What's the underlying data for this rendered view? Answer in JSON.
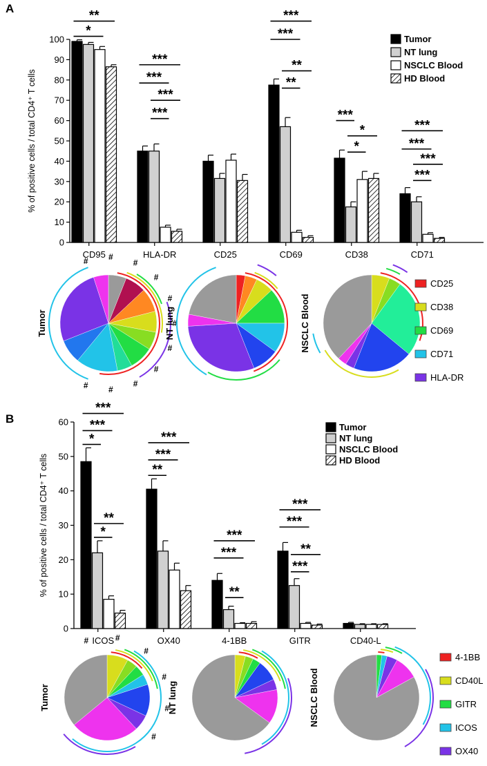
{
  "panels": {
    "a": {
      "label": "A"
    },
    "b": {
      "label": "B"
    }
  },
  "significance_marks": {
    "one": "*",
    "two": "**",
    "three": "***"
  },
  "hash_mark": "#",
  "colors": {
    "tumor": "#000000",
    "nt_lung": "#d0d0d0",
    "nsclc_blood": "#ffffff",
    "hd_blood": "hatched",
    "CD25": "#ee2222",
    "CD38": "#d8dd1d",
    "CD69": "#22dd44",
    "CD71": "#22c3e8",
    "HLA-DR": "#7a33e6",
    "4-1BB": "#ee2222",
    "CD40L": "#d8dd1d",
    "GITR": "#22dd44",
    "ICOS": "#22c3e8",
    "OX40": "#7a33e6",
    "gray": "#9a9a9a",
    "magenta": "#ee33ee",
    "blue": "#2244ee",
    "orange": "#ff8822"
  },
  "chart_data": [
    {
      "type": "bar",
      "panel": "A",
      "ylabel": "% of positive cells / total CD4⁺ T cells",
      "ylim": [
        0,
        100
      ],
      "yticks": [
        0,
        10,
        20,
        30,
        40,
        50,
        60,
        70,
        80,
        90,
        100
      ],
      "categories": [
        "CD95",
        "HLA-DR",
        "CD25",
        "CD69",
        "CD38",
        "CD71"
      ],
      "legend": [
        "Tumor",
        "NT lung",
        "NSCLC Blood",
        "HD Blood"
      ],
      "series": [
        {
          "name": "Tumor",
          "values": [
            99,
            45,
            40,
            77.5,
            41.5,
            24
          ],
          "errors": [
            0.8,
            2.5,
            3,
            3,
            4,
            3
          ]
        },
        {
          "name": "NT lung",
          "values": [
            97.5,
            45,
            31.5,
            57,
            17.5,
            20
          ],
          "errors": [
            1,
            3.5,
            2.5,
            4.5,
            2.5,
            2.5
          ]
        },
        {
          "name": "NSCLC Blood",
          "values": [
            95,
            7.5,
            40.5,
            5,
            31,
            4
          ],
          "errors": [
            1.5,
            1,
            3,
            1,
            4,
            0.8
          ]
        },
        {
          "name": "HD Blood",
          "values": [
            86.5,
            5.5,
            30.5,
            2.5,
            31.5,
            2
          ],
          "errors": [
            1,
            1,
            3,
            0.8,
            2.5,
            0.5
          ]
        }
      ],
      "significance": [
        {
          "cat": 0,
          "from": 0,
          "to": 3,
          "label": "**",
          "y": 109
        },
        {
          "cat": 0,
          "from": 0,
          "to": 2,
          "label": "*",
          "y": 101.5
        },
        {
          "cat": 1,
          "from": 0,
          "to": 3,
          "label": "***",
          "y": 87.5
        },
        {
          "cat": 1,
          "from": 0,
          "to": 2,
          "label": "***",
          "y": 78.5
        },
        {
          "cat": 1,
          "from": 1,
          "to": 3,
          "label": "***",
          "y": 70
        },
        {
          "cat": 1,
          "from": 1,
          "to": 2,
          "label": "***",
          "y": 61
        },
        {
          "cat": 3,
          "from": 0,
          "to": 3,
          "label": "***",
          "y": 109
        },
        {
          "cat": 3,
          "from": 0,
          "to": 2,
          "label": "***",
          "y": 100
        },
        {
          "cat": 3,
          "from": 1,
          "to": 3,
          "label": "**",
          "y": 84.5
        },
        {
          "cat": 3,
          "from": 1,
          "to": 2,
          "label": "**",
          "y": 76
        },
        {
          "cat": 4,
          "from": 0,
          "to": 1,
          "label": "***",
          "y": 60
        },
        {
          "cat": 4,
          "from": 1,
          "to": 3,
          "label": "*",
          "y": 52.5
        },
        {
          "cat": 4,
          "from": 1,
          "to": 2,
          "label": "*",
          "y": 44.5
        },
        {
          "cat": 5,
          "from": 0,
          "to": 3,
          "label": "***",
          "y": 55
        },
        {
          "cat": 5,
          "from": 0,
          "to": 2,
          "label": "***",
          "y": 46
        },
        {
          "cat": 5,
          "from": 1,
          "to": 3,
          "label": "***",
          "y": 38.5
        },
        {
          "cat": 5,
          "from": 1,
          "to": 2,
          "label": "***",
          "y": 30.5
        }
      ]
    },
    {
      "type": "bar",
      "panel": "B",
      "ylabel": "% of positive cells / total CD4⁺ T cells",
      "ylim": [
        0,
        60
      ],
      "yticks": [
        0,
        10,
        20,
        30,
        40,
        50,
        60
      ],
      "categories": [
        "ICOS",
        "OX40",
        "4-1BB",
        "GITR",
        "CD40-L"
      ],
      "legend": [
        "Tumor",
        "NT lung",
        "NSCLC Blood",
        "HD Blood"
      ],
      "series": [
        {
          "name": "Tumor",
          "values": [
            48.5,
            40.5,
            14,
            22.5,
            1.5
          ],
          "errors": [
            4,
            3,
            2,
            2.5,
            0.3
          ]
        },
        {
          "name": "NT lung",
          "values": [
            22,
            22.5,
            5.5,
            12.5,
            1.2
          ],
          "errors": [
            3.5,
            3,
            1,
            2,
            0.2
          ]
        },
        {
          "name": "NSCLC Blood",
          "values": [
            8.5,
            17,
            1.5,
            1.5,
            1.2
          ],
          "errors": [
            1,
            2,
            0.2,
            0.3,
            0.2
          ]
        },
        {
          "name": "HD Blood",
          "values": [
            4.5,
            11,
            1.5,
            1,
            1.2
          ],
          "errors": [
            0.8,
            1.5,
            0.5,
            0.3,
            0.2
          ]
        }
      ],
      "significance": [
        {
          "cat": 0,
          "from": 0,
          "to": 3,
          "label": "***",
          "y": 62.5
        },
        {
          "cat": 0,
          "from": 0,
          "to": 2,
          "label": "***",
          "y": 57.5
        },
        {
          "cat": 0,
          "from": 0,
          "to": 1,
          "label": "*",
          "y": 53.5
        },
        {
          "cat": 0,
          "from": 1,
          "to": 3,
          "label": "**",
          "y": 30.5
        },
        {
          "cat": 0,
          "from": 1,
          "to": 2,
          "label": "*",
          "y": 26.5
        },
        {
          "cat": 1,
          "from": 0,
          "to": 3,
          "label": "***",
          "y": 54
        },
        {
          "cat": 1,
          "from": 0,
          "to": 2,
          "label": "***",
          "y": 49
        },
        {
          "cat": 1,
          "from": 0,
          "to": 1,
          "label": "**",
          "y": 44.5
        },
        {
          "cat": 2,
          "from": 0,
          "to": 3,
          "label": "***",
          "y": 25.5
        },
        {
          "cat": 2,
          "from": 0,
          "to": 2,
          "label": "***",
          "y": 20.5
        },
        {
          "cat": 2,
          "from": 1,
          "to": 2,
          "label": "**",
          "y": 9
        },
        {
          "cat": 3,
          "from": 0,
          "to": 3,
          "label": "***",
          "y": 34.5
        },
        {
          "cat": 3,
          "from": 0,
          "to": 2,
          "label": "***",
          "y": 29.5
        },
        {
          "cat": 3,
          "from": 1,
          "to": 3,
          "label": "**",
          "y": 21.5
        },
        {
          "cat": 3,
          "from": 1,
          "to": 2,
          "label": "***",
          "y": 16.5
        }
      ]
    },
    {
      "type": "pie",
      "panel": "A",
      "legend": [
        "CD25",
        "CD38",
        "CD69",
        "CD71",
        "HLA-DR"
      ],
      "pies": [
        {
          "label": "Tumor",
          "hashes": 11,
          "slices": [
            {
              "color": "#9a9a9a",
              "value": 6
            },
            {
              "color": "#b01050",
              "value": 7
            },
            {
              "color": "#ff8822",
              "value": 8
            },
            {
              "color": "#d8dd1d",
              "value": 7
            },
            {
              "color": "#88dd22",
              "value": 6
            },
            {
              "color": "#22dd44",
              "value": 8
            },
            {
              "color": "#22dd99",
              "value": 5
            },
            {
              "color": "#22c3e8",
              "value": 14
            },
            {
              "color": "#2277ee",
              "value": 8
            },
            {
              "color": "#7a33e6",
              "value": 26
            },
            {
              "color": "#ee33ee",
              "value": 5
            }
          ]
        },
        {
          "label": "NT lung",
          "hashes": 0,
          "slices": [
            {
              "color": "#ee2222",
              "value": 3
            },
            {
              "color": "#ff8822",
              "value": 4
            },
            {
              "color": "#d8dd1d",
              "value": 6
            },
            {
              "color": "#22dd44",
              "value": 12
            },
            {
              "color": "#22c3e8",
              "value": 10
            },
            {
              "color": "#2244ee",
              "value": 9
            },
            {
              "color": "#7a33e6",
              "value": 30
            },
            {
              "color": "#ee33ee",
              "value": 4
            },
            {
              "color": "#9a9a9a",
              "value": 22
            }
          ]
        },
        {
          "label": "NSCLC Blood",
          "hashes": 0,
          "slices": [
            {
              "color": "#d8dd1d",
              "value": 6
            },
            {
              "color": "#88dd22",
              "value": 4
            },
            {
              "color": "#22ee99",
              "value": 26
            },
            {
              "color": "#2244ee",
              "value": 20
            },
            {
              "color": "#7a33e6",
              "value": 3
            },
            {
              "color": "#ee33ee",
              "value": 3
            },
            {
              "color": "#9a9a9a",
              "value": 38
            }
          ]
        }
      ]
    },
    {
      "type": "pie",
      "panel": "B",
      "legend": [
        "4-1BB",
        "CD40L",
        "GITR",
        "ICOS",
        "OX40"
      ],
      "pies": [
        {
          "label": "Tumor",
          "hashes": 6,
          "slices": [
            {
              "color": "#d8dd1d",
              "value": 8
            },
            {
              "color": "#88dd22",
              "value": 4
            },
            {
              "color": "#22dd44",
              "value": 4
            },
            {
              "color": "#22c3e8",
              "value": 4
            },
            {
              "color": "#2244ee",
              "value": 12
            },
            {
              "color": "#7a33e6",
              "value": 6
            },
            {
              "color": "#ee33ee",
              "value": 26
            },
            {
              "color": "#9a9a9a",
              "value": 36
            }
          ]
        },
        {
          "label": "NT lung",
          "hashes": 0,
          "slices": [
            {
              "color": "#d8dd1d",
              "value": 4
            },
            {
              "color": "#88dd22",
              "value": 3
            },
            {
              "color": "#22dd44",
              "value": 3
            },
            {
              "color": "#2244ee",
              "value": 8
            },
            {
              "color": "#7a33e6",
              "value": 4
            },
            {
              "color": "#ee33ee",
              "value": 13
            },
            {
              "color": "#9a9a9a",
              "value": 65
            }
          ]
        },
        {
          "label": "NSCLC Blood",
          "hashes": 0,
          "slices": [
            {
              "color": "#22dd44",
              "value": 2
            },
            {
              "color": "#22c3e8",
              "value": 2
            },
            {
              "color": "#7a33e6",
              "value": 4
            },
            {
              "color": "#ee33ee",
              "value": 9
            },
            {
              "color": "#9a9a9a",
              "value": 83
            }
          ]
        }
      ]
    }
  ]
}
